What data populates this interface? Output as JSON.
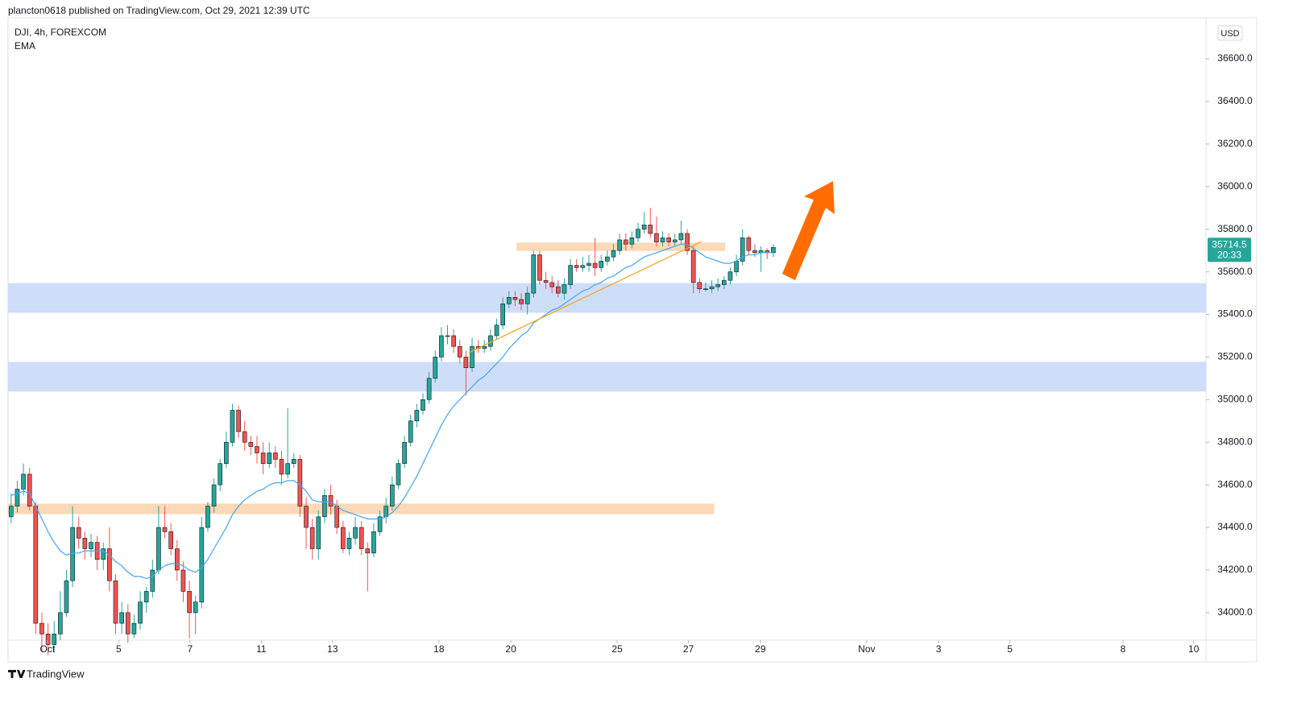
{
  "header": {
    "publisher": "plancton0618 published on TradingView.com, Oct 29, 2021 12:39 UTC"
  },
  "legend": {
    "symbol": "DJI, 4h, FOREXCOM",
    "indicator": "EMA"
  },
  "currency": "USD",
  "countdown": "20:33",
  "footer": {
    "brand": "TradingView"
  },
  "chart_data": {
    "type": "candlestick",
    "up_color": "#26a69a",
    "down_color": "#ef5350",
    "ema_color": "#42a5f5",
    "xlim": [
      -0.5,
      194.4
    ],
    "ylim": [
      33871,
      36793
    ],
    "xticks": [
      {
        "value": 5.9,
        "label": "Oct"
      },
      {
        "value": 17.5,
        "label": "5"
      },
      {
        "value": 29.1,
        "label": "7"
      },
      {
        "value": 40.7,
        "label": "11"
      },
      {
        "value": 52.3,
        "label": "13"
      },
      {
        "value": 69.6,
        "label": "18"
      },
      {
        "value": 81.3,
        "label": "20"
      },
      {
        "value": 98.6,
        "label": "25"
      },
      {
        "value": 110.2,
        "label": "27"
      },
      {
        "value": 121.9,
        "label": "29"
      },
      {
        "value": 139.2,
        "label": "Nov"
      },
      {
        "value": 150.9,
        "label": "3"
      },
      {
        "value": 162.5,
        "label": "5"
      },
      {
        "value": 180.9,
        "label": "8"
      },
      {
        "value": 192.4,
        "label": "10"
      }
    ],
    "yticks": [
      {
        "value": 34000,
        "label": "34000.0"
      },
      {
        "value": 34200,
        "label": "34200.0"
      },
      {
        "value": 34400,
        "label": "34400.0"
      },
      {
        "value": 34600,
        "label": "34600.0"
      },
      {
        "value": 34800,
        "label": "34800.0"
      },
      {
        "value": 35000,
        "label": "35000.0"
      },
      {
        "value": 35200,
        "label": "35200.0"
      },
      {
        "value": 35400,
        "label": "35400.0"
      },
      {
        "value": 35600,
        "label": "35600.0"
      },
      {
        "value": 35800,
        "label": "35800.0"
      },
      {
        "value": 36000,
        "label": "36000.0"
      },
      {
        "value": 36200,
        "label": "36200.0"
      },
      {
        "value": 36400,
        "label": "36400.0"
      },
      {
        "value": 36600,
        "label": "36600.0"
      }
    ],
    "zones": [
      {
        "color": "#c9daf8",
        "y": [
          35410,
          35545
        ]
      },
      {
        "color": "#c9daf8",
        "y": [
          35040,
          35175
        ]
      },
      {
        "color": "#fcd5b0",
        "x": [
          -0.5,
          114.3
        ],
        "y": [
          34465,
          34510
        ]
      },
      {
        "color": "#fcd5b0",
        "x": [
          82.3,
          116.1
        ],
        "y": [
          35700,
          35735
        ]
      }
    ],
    "trendline": {
      "color": "#f5a623",
      "x": [
        74.5,
        112.3
      ],
      "y": [
        35221,
        35742
      ]
    },
    "candles": [
      [
        34450,
        34560,
        34420,
        34500
      ],
      [
        34500,
        34620,
        34470,
        34580
      ],
      [
        34580,
        34700,
        34550,
        34650
      ],
      [
        34650,
        34680,
        34480,
        34500
      ],
      [
        34500,
        34520,
        33900,
        33950
      ],
      [
        33950,
        34000,
        33820,
        33900
      ],
      [
        33900,
        33950,
        33800,
        33850
      ],
      [
        33850,
        33960,
        33820,
        33900
      ],
      [
        33900,
        34100,
        33870,
        34000
      ],
      [
        34000,
        34200,
        33980,
        34150
      ],
      [
        34150,
        34500,
        34120,
        34400
      ],
      [
        34400,
        34450,
        34300,
        34350
      ],
      [
        34350,
        34380,
        34250,
        34300
      ],
      [
        34300,
        34370,
        34260,
        34330
      ],
      [
        34330,
        34360,
        34200,
        34250
      ],
      [
        34250,
        34330,
        34200,
        34300
      ],
      [
        34300,
        34400,
        34100,
        34150
      ],
      [
        34150,
        34180,
        33900,
        33950
      ],
      [
        33950,
        34050,
        33900,
        34000
      ],
      [
        34000,
        34040,
        33860,
        33900
      ],
      [
        33900,
        33990,
        33880,
        33950
      ],
      [
        33950,
        34100,
        33920,
        34050
      ],
      [
        34050,
        34120,
        34000,
        34100
      ],
      [
        34100,
        34250,
        34070,
        34200
      ],
      [
        34200,
        34500,
        34180,
        34400
      ],
      [
        34400,
        34500,
        34350,
        34380
      ],
      [
        34380,
        34420,
        34270,
        34300
      ],
      [
        34300,
        34340,
        34150,
        34200
      ],
      [
        34200,
        34240,
        34050,
        34100
      ],
      [
        34100,
        34150,
        33880,
        34000
      ],
      [
        34000,
        34080,
        33900,
        34050
      ],
      [
        34050,
        34450,
        34020,
        34400
      ],
      [
        34400,
        34520,
        34380,
        34500
      ],
      [
        34500,
        34630,
        34470,
        34600
      ],
      [
        34600,
        34720,
        34570,
        34700
      ],
      [
        34700,
        34850,
        34680,
        34800
      ],
      [
        34800,
        34980,
        34780,
        34950
      ],
      [
        34950,
        34970,
        34820,
        34850
      ],
      [
        34850,
        34900,
        34760,
        34800
      ],
      [
        34800,
        34830,
        34740,
        34780
      ],
      [
        34780,
        34830,
        34700,
        34750
      ],
      [
        34750,
        34800,
        34650,
        34700
      ],
      [
        34700,
        34800,
        34680,
        34750
      ],
      [
        34750,
        34780,
        34680,
        34720
      ],
      [
        34720,
        34760,
        34600,
        34650
      ],
      [
        34650,
        34960,
        34630,
        34700
      ],
      [
        34700,
        34750,
        34680,
        34720
      ],
      [
        34720,
        34740,
        34450,
        34500
      ],
      [
        34500,
        34540,
        34300,
        34400
      ],
      [
        34400,
        34440,
        34250,
        34300
      ],
      [
        34300,
        34480,
        34250,
        34450
      ],
      [
        34450,
        34580,
        34420,
        34550
      ],
      [
        34550,
        34600,
        34460,
        34500
      ],
      [
        34500,
        34530,
        34370,
        34400
      ],
      [
        34400,
        34430,
        34280,
        34300
      ],
      [
        34300,
        34380,
        34270,
        34350
      ],
      [
        34350,
        34450,
        34320,
        34400
      ],
      [
        34400,
        34430,
        34270,
        34300
      ],
      [
        34300,
        34330,
        34100,
        34280
      ],
      [
        34280,
        34420,
        34260,
        34380
      ],
      [
        34380,
        34480,
        34360,
        34450
      ],
      [
        34450,
        34540,
        34420,
        34500
      ],
      [
        34500,
        34640,
        34480,
        34600
      ],
      [
        34600,
        34720,
        34580,
        34700
      ],
      [
        34700,
        34830,
        34680,
        34800
      ],
      [
        34800,
        34930,
        34780,
        34900
      ],
      [
        34900,
        34980,
        34870,
        34950
      ],
      [
        34950,
        35030,
        34930,
        35000
      ],
      [
        35000,
        35130,
        34980,
        35100
      ],
      [
        35100,
        35230,
        35080,
        35200
      ],
      [
        35200,
        35340,
        35180,
        35300
      ],
      [
        35300,
        35350,
        35260,
        35300
      ],
      [
        35300,
        35330,
        35220,
        35250
      ],
      [
        35250,
        35280,
        35170,
        35200
      ],
      [
        35200,
        35230,
        35020,
        35150
      ],
      [
        35150,
        35290,
        35130,
        35250
      ],
      [
        35250,
        35280,
        35220,
        35240
      ],
      [
        35240,
        35280,
        35220,
        35250
      ],
      [
        35250,
        35330,
        35230,
        35300
      ],
      [
        35300,
        35380,
        35280,
        35350
      ],
      [
        35350,
        35480,
        35330,
        35450
      ],
      [
        35450,
        35510,
        35430,
        35480
      ],
      [
        35480,
        35510,
        35440,
        35470
      ],
      [
        35470,
        35500,
        35420,
        35450
      ],
      [
        35450,
        35530,
        35400,
        35500
      ],
      [
        35500,
        35700,
        35480,
        35680
      ],
      [
        35680,
        35700,
        35540,
        35560
      ],
      [
        35560,
        35600,
        35520,
        35550
      ],
      [
        35550,
        35580,
        35500,
        35530
      ],
      [
        35530,
        35560,
        35480,
        35500
      ],
      [
        35500,
        35570,
        35470,
        35540
      ],
      [
        35540,
        35660,
        35520,
        35630
      ],
      [
        35630,
        35660,
        35600,
        35620
      ],
      [
        35620,
        35670,
        35600,
        35630
      ],
      [
        35630,
        35680,
        35600,
        35640
      ],
      [
        35640,
        35760,
        35580,
        35620
      ],
      [
        35620,
        35680,
        35600,
        35650
      ],
      [
        35650,
        35700,
        35630,
        35670
      ],
      [
        35670,
        35730,
        35650,
        35700
      ],
      [
        35700,
        35780,
        35680,
        35750
      ],
      [
        35750,
        35780,
        35700,
        35730
      ],
      [
        35730,
        35790,
        35710,
        35760
      ],
      [
        35760,
        35830,
        35740,
        35800
      ],
      [
        35800,
        35880,
        35780,
        35820
      ],
      [
        35820,
        35900,
        35760,
        35780
      ],
      [
        35780,
        35860,
        35720,
        35740
      ],
      [
        35740,
        35790,
        35720,
        35760
      ],
      [
        35760,
        35780,
        35720,
        35740
      ],
      [
        35740,
        35780,
        35720,
        35750
      ],
      [
        35750,
        35840,
        35730,
        35780
      ],
      [
        35780,
        35800,
        35680,
        35700
      ],
      [
        35700,
        35720,
        35500,
        35550
      ],
      [
        35550,
        35570,
        35500,
        35520
      ],
      [
        35520,
        35550,
        35510,
        35520
      ],
      [
        35520,
        35560,
        35500,
        35530
      ],
      [
        35530,
        35570,
        35510,
        35540
      ],
      [
        35540,
        35580,
        35520,
        35560
      ],
      [
        35560,
        35620,
        35540,
        35600
      ],
      [
        35600,
        35680,
        35580,
        35650
      ],
      [
        35650,
        35800,
        35630,
        35760
      ],
      [
        35760,
        35770,
        35680,
        35700
      ],
      [
        35700,
        35730,
        35670,
        35690
      ],
      [
        35690,
        35720,
        35600,
        35700
      ],
      [
        35700,
        35710,
        35660,
        35690
      ],
      [
        35690,
        35730,
        35670,
        35714.5
      ]
    ],
    "ema": [
      34550,
      34560,
      34570,
      34560,
      34500,
      34440,
      34380,
      34330,
      34290,
      34270,
      34280,
      34280,
      34290,
      34290,
      34290,
      34290,
      34270,
      34240,
      34220,
      34190,
      34170,
      34170,
      34160,
      34170,
      34200,
      34220,
      34230,
      34230,
      34220,
      34200,
      34190,
      34210,
      34250,
      34300,
      34350,
      34400,
      34460,
      34500,
      34530,
      34550,
      34570,
      34580,
      34600,
      34610,
      34610,
      34620,
      34620,
      34600,
      34570,
      34530,
      34520,
      34520,
      34520,
      34500,
      34480,
      34470,
      34460,
      34450,
      34440,
      34440,
      34440,
      34450,
      34470,
      34500,
      34540,
      34590,
      34640,
      34700,
      34760,
      34820,
      34880,
      34930,
      34970,
      35000,
      35030,
      35060,
      35090,
      35110,
      35140,
      35170,
      35200,
      35240,
      35270,
      35300,
      35320,
      35360,
      35380,
      35400,
      35420,
      35430,
      35450,
      35470,
      35490,
      35510,
      35520,
      35540,
      35550,
      35570,
      35580,
      35600,
      35620,
      35630,
      35650,
      35670,
      35680,
      35690,
      35700,
      35710,
      35720,
      35730,
      35730,
      35710,
      35690,
      35670,
      35660,
      35650,
      35640,
      35640,
      35650,
      35670,
      35680,
      35680,
      35690,
      35690,
      35690
    ]
  }
}
